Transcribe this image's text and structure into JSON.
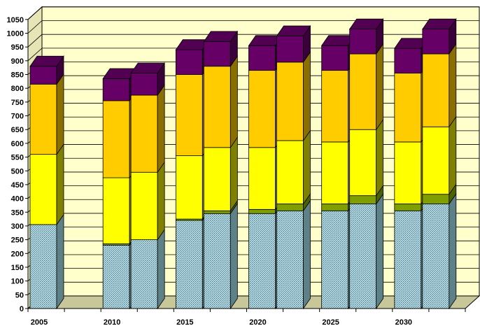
{
  "chart_data": {
    "type": "bar",
    "stacked": true,
    "three_d": true,
    "title": "",
    "xlabel": "",
    "ylabel": "",
    "ylim": [
      0,
      1050
    ],
    "ytick_step": 50,
    "grid": true,
    "legend": "none",
    "yticks": [
      "0",
      "50",
      "100",
      "150",
      "200",
      "250",
      "300",
      "350",
      "400",
      "450",
      "500",
      "550",
      "600",
      "650",
      "700",
      "750",
      "800",
      "850",
      "900",
      "950",
      "1000",
      "1050"
    ],
    "categories": [
      "2005",
      "2010",
      "2015",
      "2020",
      "2025",
      "2030"
    ],
    "bars": [
      {
        "category": "2005",
        "slot": 0,
        "values": [
          305,
          0,
          255,
          255,
          65
        ]
      },
      {
        "category": "2010",
        "slot": 0,
        "values": [
          230,
          5,
          240,
          280,
          80
        ]
      },
      {
        "category": "2010",
        "slot": 1,
        "values": [
          250,
          0,
          245,
          280,
          80
        ]
      },
      {
        "category": "2015",
        "slot": 0,
        "values": [
          320,
          5,
          230,
          295,
          90
        ]
      },
      {
        "category": "2015",
        "slot": 1,
        "values": [
          345,
          10,
          230,
          295,
          90
        ]
      },
      {
        "category": "2020",
        "slot": 0,
        "values": [
          345,
          15,
          225,
          280,
          90
        ]
      },
      {
        "category": "2020",
        "slot": 1,
        "values": [
          355,
          25,
          230,
          285,
          95
        ]
      },
      {
        "category": "2025",
        "slot": 0,
        "values": [
          355,
          25,
          225,
          260,
          90
        ]
      },
      {
        "category": "2025",
        "slot": 1,
        "values": [
          380,
          30,
          240,
          275,
          90
        ]
      },
      {
        "category": "2030",
        "slot": 0,
        "values": [
          355,
          25,
          225,
          250,
          90
        ]
      },
      {
        "category": "2030",
        "slot": 1,
        "values": [
          380,
          35,
          245,
          265,
          90
        ]
      }
    ],
    "series_colors": [
      {
        "front": "#b8dde8",
        "side": "#5e8087",
        "top": "#93b9c2",
        "pattern": true
      },
      {
        "front": "#7f9f00",
        "side": "#4c6100",
        "top": "#9ab81a"
      },
      {
        "front": "#ffff00",
        "side": "#808000",
        "top": "#e4e400"
      },
      {
        "front": "#ffcc00",
        "side": "#8a6e00",
        "top": "#e5b800"
      },
      {
        "front": "#660066",
        "side": "#3a003a",
        "top": "#520052"
      }
    ],
    "wall_color": "#ffffcc",
    "floor_color": "#c7c79a"
  }
}
